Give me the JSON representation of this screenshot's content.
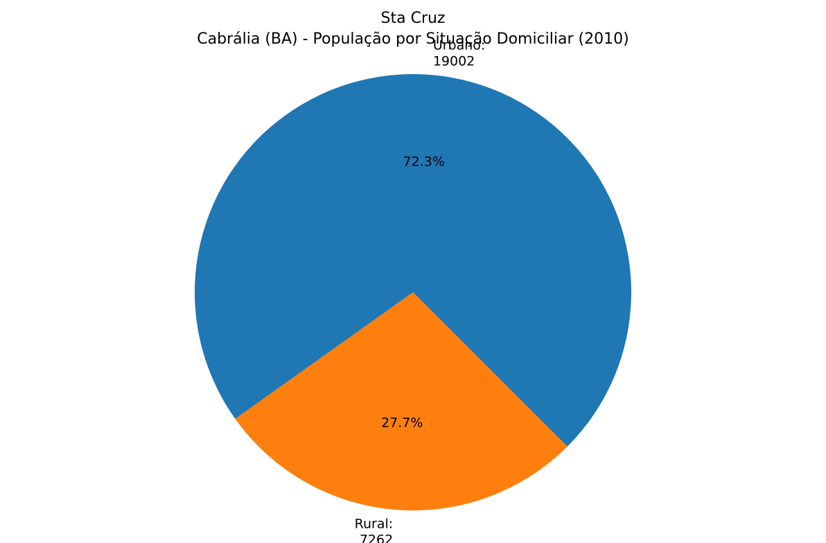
{
  "chart_data": {
    "type": "pie",
    "title_line1": "Sta Cruz",
    "title_line2": "Cabrália (BA) - População por Situação Domiciliar (2010)",
    "slices": [
      {
        "label": "Urbano:",
        "value": 19002,
        "percent_label": "72.3%",
        "color": "#1f77b4"
      },
      {
        "label": "Rural:",
        "value": 7262,
        "percent_label": "27.7%",
        "color": "#ff7f0e"
      }
    ],
    "start_angle_deg": -45,
    "direction": "counterclockwise"
  }
}
